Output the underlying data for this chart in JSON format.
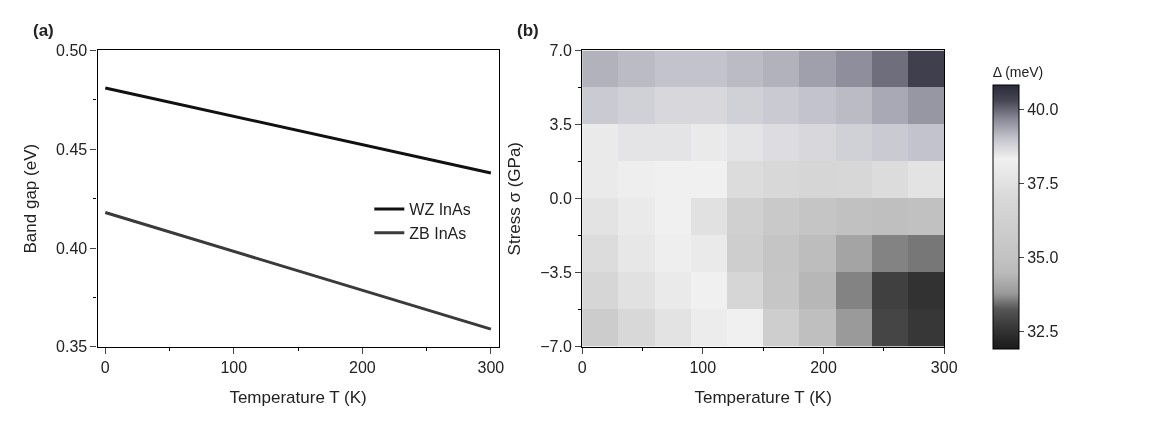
{
  "chart_data": [
    {
      "type": "line",
      "title": "(a)",
      "xlabel": "Temperature T (K)",
      "ylabel": "Band gap (eV)",
      "x": [
        0,
        300
      ],
      "series": [
        {
          "name": "WZ InAs",
          "color": "#111111",
          "values": [
            0.481,
            0.438
          ]
        },
        {
          "name": "ZB InAs",
          "color": "#3a3a3a",
          "values": [
            0.418,
            0.359
          ]
        }
      ],
      "xlim": [
        -6,
        306
      ],
      "ylim": [
        0.35,
        0.5
      ],
      "xticks": [
        0,
        {
          "value": 50,
          "label": null
        },
        100,
        {
          "value": 150,
          "label": null
        },
        200,
        {
          "value": 250,
          "label": null
        },
        300
      ],
      "yticks": [
        {
          "value": 0.35,
          "label": "0.35"
        },
        {
          "value": 0.375,
          "label": null
        },
        {
          "value": 0.4,
          "label": "0.40"
        },
        {
          "value": 0.425,
          "label": null
        },
        {
          "value": 0.45,
          "label": "0.45"
        },
        {
          "value": 0.475,
          "label": null
        },
        {
          "value": 0.5,
          "label": "0.50"
        }
      ],
      "legend": "right",
      "marker": "none",
      "line_style": "solid"
    },
    {
      "type": "heatmap",
      "title": "(b)",
      "xlabel": "Temperature T (K)",
      "ylabel": "Stress σ (GPa)",
      "clabel": "Δ (meV)",
      "x": [
        15,
        45,
        75,
        105,
        135,
        165,
        195,
        225,
        255,
        285
      ],
      "y": [
        6.125,
        4.375,
        2.625,
        0.875,
        -0.875,
        -2.625,
        -4.375,
        -6.125
      ],
      "cells": [
        [
          39.2,
          39.1,
          39.0,
          39.0,
          39.1,
          39.2,
          39.4,
          39.6,
          39.9,
          40.4
        ],
        [
          38.9,
          38.8,
          38.7,
          38.7,
          38.8,
          38.9,
          39.0,
          39.1,
          39.3,
          39.5
        ],
        [
          38.4,
          38.5,
          38.5,
          38.4,
          38.5,
          38.6,
          38.7,
          38.8,
          38.9,
          39.0
        ],
        [
          38.0,
          38.2,
          38.3,
          38.3,
          37.2,
          37.0,
          36.8,
          36.9,
          37.2,
          37.6
        ],
        [
          37.6,
          38.0,
          38.3,
          37.5,
          36.2,
          35.6,
          35.2,
          34.9,
          34.8,
          34.9
        ],
        [
          37.2,
          37.8,
          38.2,
          38.0,
          36.0,
          35.2,
          34.6,
          34.0,
          33.6,
          33.5
        ],
        [
          36.8,
          37.5,
          38.0,
          38.3,
          36.8,
          35.3,
          34.4,
          33.6,
          32.8,
          32.5
        ],
        [
          35.8,
          37.0,
          37.6,
          38.1,
          38.3,
          36.0,
          34.8,
          33.8,
          32.9,
          32.6
        ]
      ],
      "clim": [
        31.9,
        40.8
      ],
      "cticks": [
        32.5,
        {
          "value": 35,
          "label": "35.0"
        },
        37.5,
        {
          "value": 40,
          "label": "40.0"
        }
      ],
      "xlim": [
        0,
        300
      ],
      "ylim": [
        -7,
        7
      ],
      "xticks": [
        0,
        {
          "value": 50,
          "label": null
        },
        100,
        {
          "value": 150,
          "label": null
        },
        200,
        {
          "value": 250,
          "label": null
        },
        300
      ],
      "yticks": [
        {
          "value": -7,
          "label": "−7.0"
        },
        {
          "value": -5.25,
          "label": null
        },
        {
          "value": -3.5,
          "label": "−3.5"
        },
        {
          "value": -1.75,
          "label": null
        },
        {
          "value": 0,
          "label": "0.0"
        },
        {
          "value": 1.75,
          "label": null
        },
        {
          "value": 3.5,
          "label": "3.5"
        },
        {
          "value": 5.25,
          "label": null
        },
        {
          "value": 7,
          "label": "7.0"
        }
      ]
    }
  ]
}
